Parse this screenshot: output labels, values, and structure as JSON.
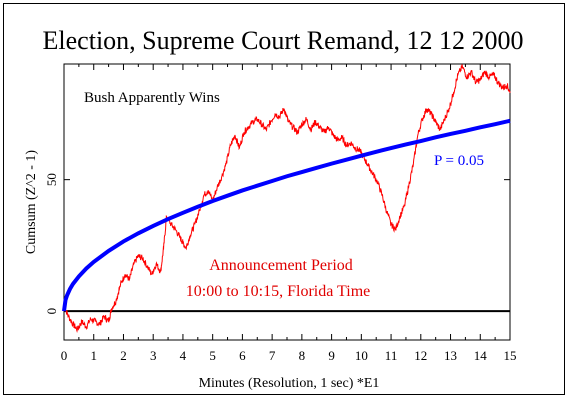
{
  "chart_data": {
    "type": "line",
    "title": "Election, Supreme Court Remand, 12 12 2000",
    "xlabel": "Minutes (Resolution, 1 sec)   *E1",
    "ylabel": "Cumsum (Z^2 - 1)",
    "xlim": [
      0,
      15
    ],
    "ylim": [
      -11,
      94
    ],
    "x_ticks": [
      0,
      0.5,
      1,
      1.5,
      2,
      2.5,
      3,
      3.5,
      4,
      4.5,
      5,
      5.5,
      6,
      6.5,
      7,
      7.5,
      8,
      8.5,
      9,
      9.5,
      10,
      10.5,
      11,
      11.5,
      12,
      12.5,
      13,
      13.5,
      14,
      14.5,
      15
    ],
    "x_tick_labels": [
      "0",
      "1",
      "2",
      "3",
      "4",
      "5",
      "6",
      "7",
      "8",
      "9",
      "10",
      "11",
      "12",
      "13",
      "14",
      "15"
    ],
    "y_tick_labels": [
      "0",
      "50"
    ],
    "y_ticks": [
      0,
      50
    ],
    "zero_line": 0,
    "grid": false,
    "annotations": {
      "top_left": "Bush Apparently Wins",
      "p_label": "P = 0.05",
      "period_line1": "Announcement Period",
      "period_line2": "10:00 to 10:15, Florida Time"
    },
    "series": [
      {
        "color": "#ff0000",
        "x": [
          0,
          0.15,
          0.3,
          0.45,
          0.6,
          0.75,
          0.9,
          1.05,
          1.2,
          1.35,
          1.5,
          1.6,
          1.75,
          1.9,
          2.05,
          2.2,
          2.35,
          2.5,
          2.65,
          2.8,
          2.95,
          3.1,
          3.25,
          3.35,
          3.45,
          3.6,
          3.75,
          3.9,
          4.0,
          4.1,
          4.25,
          4.4,
          4.55,
          4.7,
          4.85,
          5.0,
          5.15,
          5.3,
          5.45,
          5.6,
          5.75,
          5.9,
          6.05,
          6.2,
          6.35,
          6.5,
          6.65,
          6.8,
          6.95,
          7.1,
          7.25,
          7.4,
          7.55,
          7.7,
          7.85,
          8.0,
          8.15,
          8.3,
          8.45,
          8.6,
          8.75,
          8.9,
          9.05,
          9.2,
          9.35,
          9.5,
          9.65,
          9.8,
          9.95,
          10.1,
          10.25,
          10.4,
          10.55,
          10.7,
          10.85,
          11.0,
          11.15,
          11.3,
          11.45,
          11.6,
          11.75,
          11.9,
          12.05,
          12.2,
          12.35,
          12.5,
          12.65,
          12.8,
          12.95,
          13.1,
          13.25,
          13.4,
          13.55,
          13.7,
          13.85,
          14.0,
          14.15,
          14.3,
          14.45,
          14.6,
          14.75,
          14.9,
          15.0
        ],
        "y": [
          2,
          -2,
          -5,
          -7,
          -4,
          -6,
          -3,
          -4,
          -5,
          -2,
          -4,
          1,
          4,
          10,
          14,
          12,
          18,
          21,
          20,
          17,
          14,
          18,
          15,
          24,
          36,
          33,
          31,
          28,
          26,
          24,
          29,
          33,
          38,
          44,
          46,
          42,
          47,
          51,
          56,
          63,
          67,
          62,
          68,
          70,
          72,
          73,
          71,
          69,
          72,
          75,
          74,
          77,
          72,
          70,
          68,
          71,
          73,
          69,
          72,
          70,
          68,
          70,
          67,
          65,
          66,
          63,
          64,
          62,
          61,
          58,
          55,
          52,
          49,
          44,
          38,
          33,
          31,
          36,
          40,
          48,
          56,
          67,
          73,
          77,
          75,
          72,
          69,
          73,
          77,
          83,
          90,
          93,
          89,
          91,
          87,
          88,
          91,
          89,
          90,
          87,
          85,
          86,
          83
        ]
      },
      {
        "color": "#0000ff",
        "x": [
          0,
          0.05,
          0.1,
          0.2,
          0.3,
          0.5,
          0.75,
          1,
          1.5,
          2,
          2.5,
          3,
          3.5,
          4,
          4.5,
          5,
          5.5,
          6,
          6.5,
          7,
          7.5,
          8,
          8.5,
          9,
          9.5,
          10,
          10.5,
          11,
          11.5,
          12,
          12.5,
          13,
          13.5,
          14,
          14.5,
          15
        ],
        "y": [
          0,
          4.2,
          5.9,
          8.4,
          10.3,
          13.2,
          16.2,
          18.7,
          22.9,
          26.5,
          29.6,
          32.4,
          35.0,
          37.4,
          39.7,
          41.9,
          43.9,
          45.9,
          47.7,
          49.5,
          51.3,
          52.9,
          54.5,
          56.1,
          57.6,
          59.1,
          60.6,
          62.0,
          63.4,
          64.7,
          66.1,
          67.4,
          68.6,
          69.9,
          71.1,
          72.4
        ]
      }
    ]
  }
}
